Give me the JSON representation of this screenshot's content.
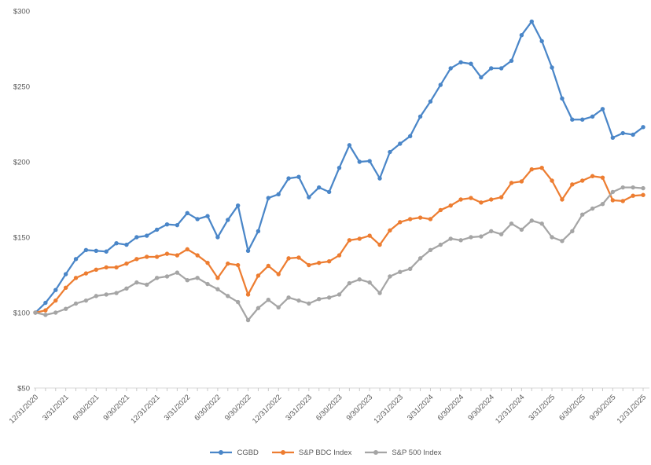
{
  "chart_data": {
    "type": "line",
    "title": "",
    "start_label": "12/31/2020",
    "end_label": "12/31/2025",
    "points_frequency": "monthly",
    "x_tick_labels": [
      "12/31/2020",
      "3/31/2021",
      "6/30/2021",
      "9/30/2021",
      "12/31/2021",
      "3/31/2022",
      "6/30/2022",
      "9/30/2022",
      "12/31/2022",
      "3/31/2023",
      "6/30/2023",
      "9/30/2023",
      "12/31/2023",
      "3/31/2024",
      "6/30/2024",
      "9/30/2024",
      "12/31/2024",
      "3/31/2025",
      "6/30/2025",
      "9/30/2025",
      "12/31/2025"
    ],
    "months_per_x_label": 3,
    "y_axis": {
      "min": 50,
      "max": 300,
      "step": 50,
      "tick_labels": [
        "$50",
        "$100",
        "$150",
        "$200",
        "$250",
        "$300"
      ]
    },
    "grid": "off",
    "legend_position": "bottom",
    "series": [
      {
        "name": "CGBD",
        "color": "#4A86C8",
        "values": [
          100,
          106.5,
          115,
          125.5,
          135.5,
          141.5,
          141,
          140.5,
          146,
          145,
          150,
          151,
          155,
          158.5,
          158,
          166,
          162,
          164,
          150,
          161.5,
          171,
          141,
          154,
          176,
          178.5,
          189,
          190,
          176.5,
          183,
          180,
          196,
          211,
          200,
          200.5,
          189,
          206.5,
          212,
          217,
          230,
          240,
          251,
          262,
          266,
          265,
          256,
          262,
          262,
          267,
          284,
          293,
          280,
          262.5,
          242,
          228,
          228,
          230,
          235,
          216,
          219,
          218,
          223
        ]
      },
      {
        "name": "S&P BDC Index",
        "color": "#ED7D31",
        "values": [
          100,
          101.5,
          108,
          116.5,
          123,
          126,
          128.5,
          130,
          130,
          132.5,
          135.5,
          137,
          137,
          139,
          138,
          142,
          138,
          133,
          123,
          132.5,
          131.5,
          112,
          124.5,
          131,
          125.5,
          136,
          136.5,
          131.5,
          133,
          134,
          138,
          148,
          149,
          151,
          145,
          154.5,
          160,
          162,
          163,
          162,
          168,
          171,
          175,
          176,
          173,
          175,
          176.5,
          186,
          187,
          195,
          196,
          187.5,
          175,
          185,
          187.5,
          190.5,
          189.5,
          174.5,
          174,
          177.5,
          178
        ]
      },
      {
        "name": "S&P 500 Index",
        "color": "#A5A5A5",
        "values": [
          100,
          98.5,
          100,
          102.5,
          106,
          108,
          111,
          112,
          113,
          116,
          120,
          118.5,
          123,
          124,
          126.5,
          121.5,
          123,
          119,
          115.5,
          111,
          107,
          95,
          103,
          108.5,
          103.5,
          110,
          108,
          106,
          109,
          110,
          112,
          119.5,
          122,
          120,
          113,
          124,
          127,
          129,
          136,
          141.5,
          145,
          149,
          148,
          150,
          150.5,
          154,
          152,
          159,
          155,
          161,
          159,
          150,
          147.5,
          154,
          165,
          169,
          172,
          180,
          183,
          183,
          182.5
        ]
      }
    ],
    "text_color": "#595959",
    "axis_line_color": "#D9D9D9",
    "tick_color": "#C9C9C9"
  }
}
